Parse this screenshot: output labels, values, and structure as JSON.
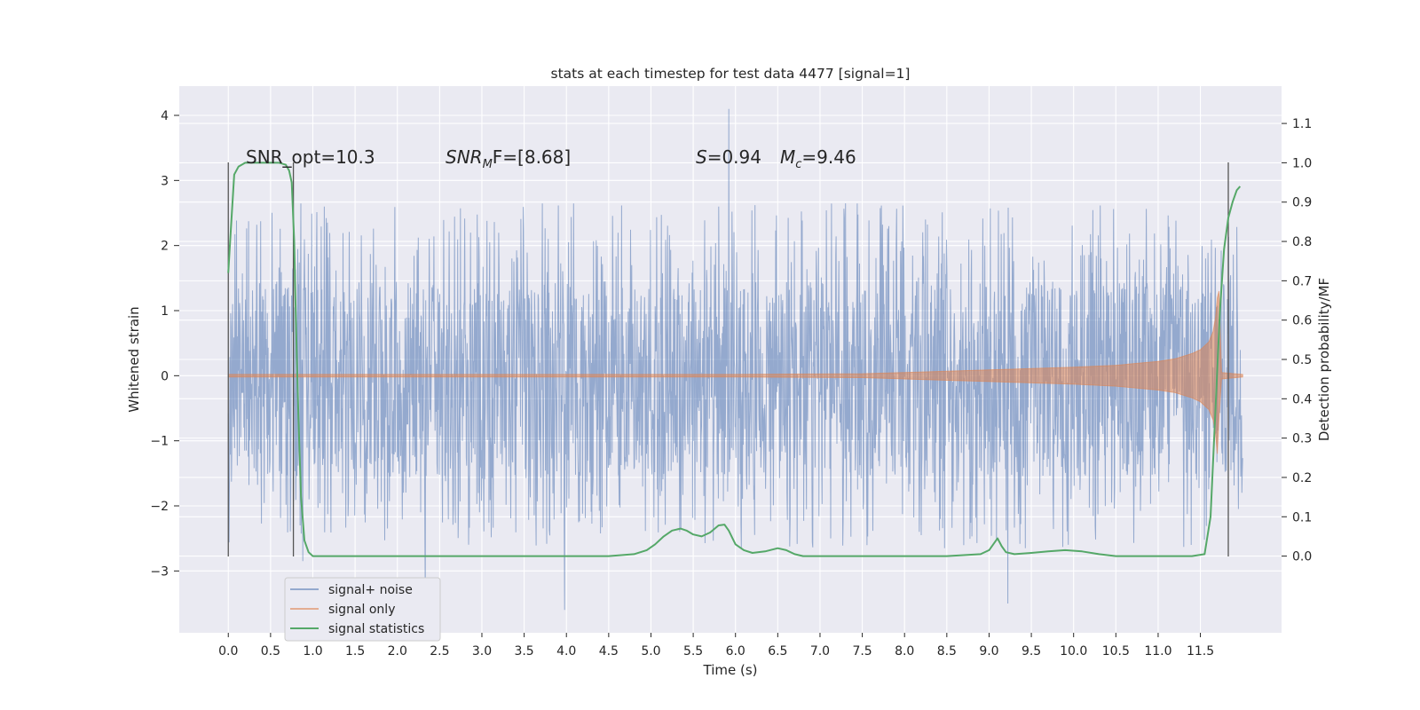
{
  "chart_data": {
    "type": "line",
    "title": "stats at each timestep for test data 4477 [signal=1]",
    "xlabel": "Time (s)",
    "ylabel_left": "Whitened strain",
    "ylabel_right": "Detection probability/MF",
    "xlim": [
      -0.58,
      12.46
    ],
    "ylim_left": [
      -3.95,
      4.45
    ],
    "ylim_right": [
      -0.195,
      1.195
    ],
    "x_ticks": [
      "0.0",
      "0.5",
      "1.0",
      "1.5",
      "2.0",
      "2.5",
      "3.0",
      "3.5",
      "4.0",
      "4.5",
      "5.0",
      "5.5",
      "6.0",
      "6.5",
      "7.0",
      "7.5",
      "8.0",
      "8.5",
      "9.0",
      "9.5",
      "10.0",
      "10.5",
      "11.0",
      "11.5"
    ],
    "y_ticks_left": [
      "−3",
      "−2",
      "−1",
      "0",
      "1",
      "2",
      "3",
      "4"
    ],
    "y_ticks_right": [
      "0.0",
      "0.1",
      "0.2",
      "0.3",
      "0.4",
      "0.5",
      "0.6",
      "0.7",
      "0.8",
      "0.9",
      "1.0",
      "1.1"
    ],
    "annotations": {
      "snr_opt": "SNR_opt=10.3",
      "snr_mf_prefix": "SNR",
      "snr_mf_sub": "M",
      "snr_mf_suffix": "F=[8.68]",
      "s_symbol": "S",
      "s_value": "=0.94",
      "mc_symbol": "M",
      "mc_sub": "c",
      "mc_value": "=9.46"
    },
    "vertical_markers": [
      0.0,
      0.77,
      11.83
    ],
    "legend": {
      "position": "lower-left",
      "entries": [
        "signal+ noise",
        "signal only",
        "signal statistics"
      ]
    },
    "colors": {
      "noise": "#4c72b0",
      "signal": "#dd8452",
      "stats": "#55a868",
      "background": "#eaeaf2",
      "grid": "#ffffff",
      "marker": "#555555"
    },
    "series": [
      {
        "name": "signal statistics",
        "axis": "right",
        "x": [
          0.0,
          0.03,
          0.07,
          0.12,
          0.2,
          0.3,
          0.45,
          0.6,
          0.68,
          0.72,
          0.75,
          0.78,
          0.8,
          0.83,
          0.86,
          0.9,
          0.95,
          1.0,
          1.1,
          1.5,
          2.0,
          2.5,
          3.0,
          3.5,
          3.8,
          4.0,
          4.5,
          4.8,
          4.95,
          5.05,
          5.15,
          5.25,
          5.35,
          5.42,
          5.5,
          5.6,
          5.7,
          5.8,
          5.87,
          5.92,
          6.0,
          6.1,
          6.2,
          6.35,
          6.5,
          6.6,
          6.7,
          6.8,
          7.0,
          7.5,
          8.0,
          8.5,
          8.9,
          9.0,
          9.05,
          9.1,
          9.15,
          9.2,
          9.3,
          9.5,
          9.7,
          9.9,
          10.1,
          10.3,
          10.5,
          11.0,
          11.4,
          11.55,
          11.62,
          11.68,
          11.73,
          11.78,
          11.83,
          11.88,
          11.93,
          11.97
        ],
        "values": [
          0.72,
          0.83,
          0.97,
          0.99,
          1.0,
          1.0,
          1.0,
          1.0,
          0.995,
          0.98,
          0.95,
          0.8,
          0.6,
          0.35,
          0.15,
          0.04,
          0.01,
          0.0,
          0.0,
          0.0,
          0.0,
          0.0,
          0.0,
          0.0,
          0.0,
          0.0,
          0.0,
          0.005,
          0.015,
          0.03,
          0.05,
          0.065,
          0.07,
          0.065,
          0.055,
          0.05,
          0.06,
          0.078,
          0.08,
          0.065,
          0.03,
          0.015,
          0.008,
          0.012,
          0.02,
          0.015,
          0.005,
          0.0,
          0.0,
          0.0,
          0.0,
          0.0,
          0.005,
          0.015,
          0.03,
          0.045,
          0.025,
          0.01,
          0.005,
          0.008,
          0.012,
          0.015,
          0.012,
          0.005,
          0.0,
          0.0,
          0.0,
          0.005,
          0.1,
          0.38,
          0.62,
          0.78,
          0.86,
          0.9,
          0.93,
          0.94
        ]
      },
      {
        "name": "signal only",
        "axis": "left",
        "x": [
          0.0,
          6.0,
          7.5,
          8.0,
          8.5,
          9.0,
          9.5,
          10.0,
          10.5,
          11.0,
          11.2,
          11.4,
          11.5,
          11.6,
          11.65,
          11.68,
          11.7,
          11.72,
          11.75,
          12.0
        ],
        "upper": [
          0.02,
          0.02,
          0.03,
          0.05,
          0.07,
          0.09,
          0.11,
          0.13,
          0.16,
          0.22,
          0.26,
          0.34,
          0.4,
          0.52,
          0.68,
          0.9,
          1.2,
          1.3,
          0.05,
          0.02
        ],
        "lower": [
          -0.02,
          -0.02,
          -0.03,
          -0.05,
          -0.07,
          -0.09,
          -0.11,
          -0.13,
          -0.16,
          -0.22,
          -0.26,
          -0.34,
          -0.4,
          -0.52,
          -0.68,
          -0.9,
          -1.2,
          -0.65,
          -0.05,
          -0.02
        ]
      },
      {
        "name": "signal+ noise",
        "axis": "left",
        "x_start": 0.0,
        "x_end": 12.0,
        "band": [
          -1.55,
          1.45
        ],
        "peaks": [
          {
            "x": 5.92,
            "y": 4.1
          },
          {
            "x": 3.98,
            "y": -3.6
          },
          {
            "x": 2.33,
            "y": -3.45
          },
          {
            "x": 9.22,
            "y": -3.5
          },
          {
            "x": 0.88,
            "y": -2.85
          }
        ]
      }
    ]
  }
}
